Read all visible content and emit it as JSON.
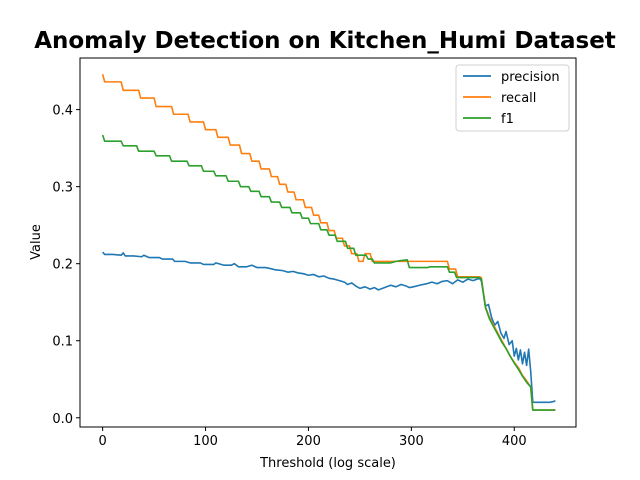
{
  "chart_data": {
    "type": "line",
    "title": "Anomaly Detection on Kitchen_Humi Dataset",
    "xlabel": "Threshold (log scale)",
    "ylabel": "Value",
    "xlim": [
      -22,
      460
    ],
    "ylim": [
      -0.012,
      0.467
    ],
    "xticks": [
      0,
      100,
      200,
      300,
      400
    ],
    "yticks": [
      0.0,
      0.1,
      0.2,
      0.3,
      0.4
    ],
    "xtick_labels": [
      "0",
      "100",
      "200",
      "300",
      "400"
    ],
    "ytick_labels": [
      "0.0",
      "0.1",
      "0.2",
      "0.3",
      "0.4"
    ],
    "legend_position": "top-right",
    "grid": false,
    "series": [
      {
        "name": "precision",
        "color": "#1f77b4",
        "points": [
          [
            0,
            0.215
          ],
          [
            2,
            0.212
          ],
          [
            10,
            0.212
          ],
          [
            18,
            0.211
          ],
          [
            20,
            0.214
          ],
          [
            22,
            0.21
          ],
          [
            30,
            0.21
          ],
          [
            38,
            0.209
          ],
          [
            40,
            0.211
          ],
          [
            45,
            0.208
          ],
          [
            55,
            0.208
          ],
          [
            58,
            0.206
          ],
          [
            68,
            0.206
          ],
          [
            70,
            0.203
          ],
          [
            80,
            0.203
          ],
          [
            85,
            0.201
          ],
          [
            95,
            0.201
          ],
          [
            98,
            0.199
          ],
          [
            108,
            0.199
          ],
          [
            110,
            0.201
          ],
          [
            118,
            0.198
          ],
          [
            125,
            0.198
          ],
          [
            128,
            0.2
          ],
          [
            132,
            0.196
          ],
          [
            140,
            0.196
          ],
          [
            145,
            0.198
          ],
          [
            150,
            0.195
          ],
          [
            158,
            0.195
          ],
          [
            162,
            0.194
          ],
          [
            168,
            0.192
          ],
          [
            175,
            0.191
          ],
          [
            180,
            0.189
          ],
          [
            185,
            0.19
          ],
          [
            190,
            0.188
          ],
          [
            195,
            0.187
          ],
          [
            200,
            0.185
          ],
          [
            205,
            0.186
          ],
          [
            210,
            0.183
          ],
          [
            215,
            0.184
          ],
          [
            220,
            0.181
          ],
          [
            225,
            0.18
          ],
          [
            230,
            0.178
          ],
          [
            235,
            0.176
          ],
          [
            238,
            0.173
          ],
          [
            242,
            0.175
          ],
          [
            246,
            0.171
          ],
          [
            250,
            0.168
          ],
          [
            255,
            0.17
          ],
          [
            260,
            0.167
          ],
          [
            264,
            0.169
          ],
          [
            268,
            0.166
          ],
          [
            272,
            0.168
          ],
          [
            276,
            0.17
          ],
          [
            280,
            0.172
          ],
          [
            285,
            0.17
          ],
          [
            290,
            0.173
          ],
          [
            295,
            0.171
          ],
          [
            298,
            0.169
          ],
          [
            302,
            0.17
          ],
          [
            308,
            0.172
          ],
          [
            315,
            0.174
          ],
          [
            320,
            0.176
          ],
          [
            325,
            0.174
          ],
          [
            330,
            0.177
          ],
          [
            335,
            0.178
          ],
          [
            340,
            0.174
          ],
          [
            345,
            0.179
          ],
          [
            350,
            0.176
          ],
          [
            355,
            0.18
          ],
          [
            360,
            0.178
          ],
          [
            366,
            0.181
          ],
          [
            368,
            0.178
          ],
          [
            372,
            0.145
          ],
          [
            375,
            0.147
          ],
          [
            378,
            0.13
          ],
          [
            381,
            0.12
          ],
          [
            384,
            0.125
          ],
          [
            387,
            0.11
          ],
          [
            390,
            0.103
          ],
          [
            392,
            0.112
          ],
          [
            395,
            0.095
          ],
          [
            398,
            0.1
          ],
          [
            400,
            0.08
          ],
          [
            402,
            0.09
          ],
          [
            404,
            0.075
          ],
          [
            406,
            0.088
          ],
          [
            408,
            0.07
          ],
          [
            410,
            0.085
          ],
          [
            412,
            0.068
          ],
          [
            414,
            0.089
          ],
          [
            416,
            0.06
          ],
          [
            418,
            0.02
          ],
          [
            428,
            0.02
          ],
          [
            434,
            0.02
          ],
          [
            438,
            0.021
          ],
          [
            440,
            0.022
          ]
        ]
      },
      {
        "name": "recall",
        "color": "#ff7f0e",
        "points": [
          [
            0,
            0.446
          ],
          [
            2,
            0.436
          ],
          [
            18,
            0.436
          ],
          [
            20,
            0.425
          ],
          [
            35,
            0.425
          ],
          [
            37,
            0.415
          ],
          [
            50,
            0.415
          ],
          [
            52,
            0.404
          ],
          [
            67,
            0.404
          ],
          [
            69,
            0.394
          ],
          [
            83,
            0.394
          ],
          [
            85,
            0.384
          ],
          [
            98,
            0.384
          ],
          [
            100,
            0.374
          ],
          [
            110,
            0.374
          ],
          [
            112,
            0.364
          ],
          [
            122,
            0.364
          ],
          [
            124,
            0.354
          ],
          [
            133,
            0.354
          ],
          [
            135,
            0.343
          ],
          [
            143,
            0.343
          ],
          [
            145,
            0.333
          ],
          [
            152,
            0.333
          ],
          [
            154,
            0.323
          ],
          [
            162,
            0.323
          ],
          [
            164,
            0.313
          ],
          [
            170,
            0.313
          ],
          [
            172,
            0.303
          ],
          [
            178,
            0.303
          ],
          [
            180,
            0.293
          ],
          [
            186,
            0.293
          ],
          [
            188,
            0.283
          ],
          [
            195,
            0.283
          ],
          [
            197,
            0.273
          ],
          [
            203,
            0.273
          ],
          [
            205,
            0.263
          ],
          [
            210,
            0.263
          ],
          [
            212,
            0.253
          ],
          [
            218,
            0.253
          ],
          [
            220,
            0.243
          ],
          [
            225,
            0.243
          ],
          [
            227,
            0.233
          ],
          [
            233,
            0.233
          ],
          [
            235,
            0.223
          ],
          [
            240,
            0.223
          ],
          [
            242,
            0.213
          ],
          [
            247,
            0.213
          ],
          [
            249,
            0.203
          ],
          [
            253,
            0.203
          ],
          [
            255,
            0.213
          ],
          [
            260,
            0.213
          ],
          [
            262,
            0.203
          ],
          [
            296,
            0.203
          ],
          [
            298,
            0.203
          ],
          [
            335,
            0.203
          ],
          [
            337,
            0.193
          ],
          [
            343,
            0.193
          ],
          [
            345,
            0.183
          ],
          [
            366,
            0.183
          ],
          [
            368,
            0.182
          ],
          [
            372,
            0.144
          ],
          [
            376,
            0.13
          ],
          [
            380,
            0.12
          ],
          [
            384,
            0.11
          ],
          [
            388,
            0.1
          ],
          [
            392,
            0.09
          ],
          [
            396,
            0.08
          ],
          [
            400,
            0.072
          ],
          [
            404,
            0.065
          ],
          [
            408,
            0.055
          ],
          [
            412,
            0.048
          ],
          [
            416,
            0.04
          ],
          [
            418,
            0.01
          ],
          [
            440,
            0.01
          ]
        ]
      },
      {
        "name": "f1",
        "color": "#2ca02c",
        "points": [
          [
            0,
            0.367
          ],
          [
            2,
            0.359
          ],
          [
            18,
            0.359
          ],
          [
            20,
            0.353
          ],
          [
            33,
            0.353
          ],
          [
            35,
            0.346
          ],
          [
            50,
            0.346
          ],
          [
            52,
            0.34
          ],
          [
            65,
            0.34
          ],
          [
            67,
            0.333
          ],
          [
            82,
            0.333
          ],
          [
            84,
            0.327
          ],
          [
            96,
            0.327
          ],
          [
            98,
            0.32
          ],
          [
            108,
            0.32
          ],
          [
            110,
            0.314
          ],
          [
            120,
            0.314
          ],
          [
            122,
            0.307
          ],
          [
            132,
            0.307
          ],
          [
            134,
            0.3
          ],
          [
            142,
            0.3
          ],
          [
            144,
            0.294
          ],
          [
            152,
            0.294
          ],
          [
            154,
            0.287
          ],
          [
            162,
            0.287
          ],
          [
            164,
            0.28
          ],
          [
            172,
            0.28
          ],
          [
            174,
            0.273
          ],
          [
            182,
            0.273
          ],
          [
            184,
            0.266
          ],
          [
            192,
            0.266
          ],
          [
            194,
            0.259
          ],
          [
            200,
            0.259
          ],
          [
            202,
            0.252
          ],
          [
            210,
            0.252
          ],
          [
            212,
            0.244
          ],
          [
            218,
            0.244
          ],
          [
            220,
            0.237
          ],
          [
            226,
            0.237
          ],
          [
            228,
            0.229
          ],
          [
            236,
            0.229
          ],
          [
            238,
            0.22
          ],
          [
            244,
            0.22
          ],
          [
            246,
            0.211
          ],
          [
            256,
            0.211
          ],
          [
            258,
            0.206
          ],
          [
            262,
            0.206
          ],
          [
            264,
            0.201
          ],
          [
            280,
            0.201
          ],
          [
            285,
            0.203
          ],
          [
            290,
            0.204
          ],
          [
            296,
            0.205
          ],
          [
            298,
            0.195
          ],
          [
            316,
            0.195
          ],
          [
            318,
            0.196
          ],
          [
            335,
            0.196
          ],
          [
            337,
            0.189
          ],
          [
            342,
            0.189
          ],
          [
            344,
            0.182
          ],
          [
            366,
            0.182
          ],
          [
            368,
            0.18
          ],
          [
            372,
            0.143
          ],
          [
            376,
            0.128
          ],
          [
            380,
            0.118
          ],
          [
            384,
            0.108
          ],
          [
            388,
            0.098
          ],
          [
            392,
            0.09
          ],
          [
            396,
            0.08
          ],
          [
            400,
            0.071
          ],
          [
            404,
            0.063
          ],
          [
            408,
            0.054
          ],
          [
            412,
            0.046
          ],
          [
            416,
            0.04
          ],
          [
            418,
            0.01
          ],
          [
            440,
            0.01
          ]
        ]
      }
    ]
  }
}
